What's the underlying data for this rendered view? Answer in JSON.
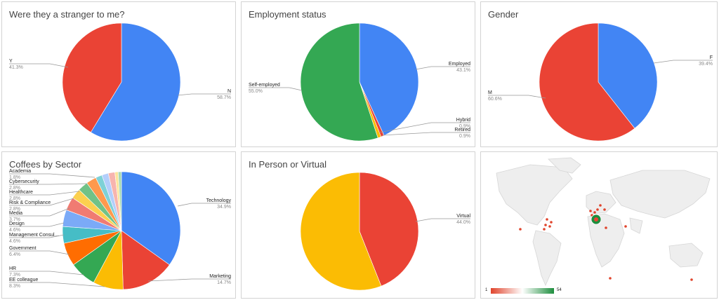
{
  "chart_data": [
    {
      "type": "pie",
      "title": "Were they a stranger to me?",
      "slices": [
        {
          "label": "N",
          "value": 58.7,
          "display": "58.7%",
          "color": "#4285f4"
        },
        {
          "label": "Y",
          "value": 41.3,
          "display": "41.3%",
          "color": "#ea4335"
        }
      ]
    },
    {
      "type": "pie",
      "title": "Employment status",
      "slices": [
        {
          "label": "Employed",
          "value": 43.1,
          "display": "43.1%",
          "color": "#4285f4"
        },
        {
          "label": "Hybrid",
          "value": 0.9,
          "display": "0.9%",
          "color": "#ea4335"
        },
        {
          "label": "Retired",
          "value": 0.9,
          "display": "0.9%",
          "color": "#fbbc04"
        },
        {
          "label": "Self-employed",
          "value": 55.0,
          "display": "55.0%",
          "color": "#34a853"
        }
      ]
    },
    {
      "type": "pie",
      "title": "Gender",
      "slices": [
        {
          "label": "F",
          "value": 39.4,
          "display": "39.4%",
          "color": "#4285f4"
        },
        {
          "label": "M",
          "value": 60.6,
          "display": "60.6%",
          "color": "#ea4335"
        }
      ]
    },
    {
      "type": "pie",
      "title": "Coffees by Sector",
      "slices": [
        {
          "label": "Technology",
          "value": 34.9,
          "display": "34.9%",
          "color": "#4285f4"
        },
        {
          "label": "Marketing",
          "value": 14.7,
          "display": "14.7%",
          "color": "#ea4335"
        },
        {
          "label": "EE colleague",
          "value": 8.3,
          "display": "8.3%",
          "color": "#fbbc04"
        },
        {
          "label": "HR",
          "value": 7.3,
          "display": "7.3%",
          "color": "#34a853"
        },
        {
          "label": "Government",
          "value": 6.4,
          "display": "6.4%",
          "color": "#ff6d01"
        },
        {
          "label": "Management Consul...",
          "value": 4.6,
          "display": "4.6%",
          "color": "#46bdc6"
        },
        {
          "label": "Design",
          "value": 4.6,
          "display": "4.6%",
          "color": "#7baaf7"
        },
        {
          "label": "Media",
          "value": 3.7,
          "display": "3.7%",
          "color": "#f07b72"
        },
        {
          "label": "Risk & Compliance",
          "value": 2.8,
          "display": "2.8%",
          "color": "#fcd04f"
        },
        {
          "label": "Healthcare",
          "value": 2.8,
          "display": "2.8%",
          "color": "#71c287"
        },
        {
          "label": "Cybersecurity",
          "value": 2.8,
          "display": "2.8%",
          "color": "#ff994d"
        },
        {
          "label": "Academia",
          "value": 1.8,
          "display": "1.8%",
          "color": "#7ed1d7"
        },
        {
          "label": "",
          "value": 1.8,
          "display": "",
          "color": "#b3cefb"
        },
        {
          "label": "",
          "value": 1.8,
          "display": "",
          "color": "#f7b4ae"
        },
        {
          "label": "",
          "value": 0.9,
          "display": "",
          "color": "#fde49b"
        },
        {
          "label": "",
          "value": 0.9,
          "display": "",
          "color": "#a8dab5"
        }
      ]
    },
    {
      "type": "pie",
      "title": "In Person or Virtual",
      "slices": [
        {
          "label": "Virtual",
          "value": 44.0,
          "display": "44.0%",
          "color": "#ea4335"
        },
        {
          "label": "",
          "value": 56.0,
          "display": "",
          "color": "#fbbc04"
        }
      ]
    },
    {
      "type": "geo",
      "title": "",
      "colorscale": {
        "min": 1,
        "max": 54,
        "min_color": "#e0442c",
        "mid_color": "#ffffff",
        "max_color": "#1e8e3e"
      }
    }
  ]
}
